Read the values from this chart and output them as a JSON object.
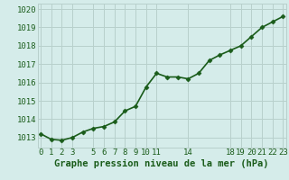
{
  "x": [
    0,
    1,
    2,
    3,
    4,
    5,
    6,
    7,
    8,
    9,
    10,
    11,
    12,
    13,
    14,
    15,
    16,
    17,
    18,
    19,
    20,
    21,
    22,
    23
  ],
  "y": [
    1013.2,
    1012.9,
    1012.85,
    1013.0,
    1013.3,
    1013.5,
    1013.6,
    1013.85,
    1014.45,
    1014.7,
    1015.75,
    1016.5,
    1016.3,
    1016.3,
    1016.2,
    1016.5,
    1017.2,
    1017.5,
    1017.75,
    1018.0,
    1018.5,
    1019.0,
    1019.3,
    1019.6
  ],
  "line_color": "#1a5c1a",
  "marker": "D",
  "marker_size": 2.5,
  "bg_color": "#d5ecea",
  "grid_color": "#b8d0cc",
  "xlabel": "Graphe pression niveau de la mer (hPa)",
  "xlabel_fontsize": 7.5,
  "xticks": [
    0,
    1,
    2,
    3,
    5,
    6,
    7,
    8,
    9,
    10,
    11,
    14,
    18,
    19,
    20,
    21,
    22,
    23
  ],
  "yticks": [
    1013,
    1014,
    1015,
    1016,
    1017,
    1018,
    1019,
    1020
  ],
  "ylim": [
    1012.45,
    1020.3
  ],
  "xlim": [
    -0.3,
    23.3
  ],
  "tick_fontsize": 6.5,
  "linewidth": 1.2
}
